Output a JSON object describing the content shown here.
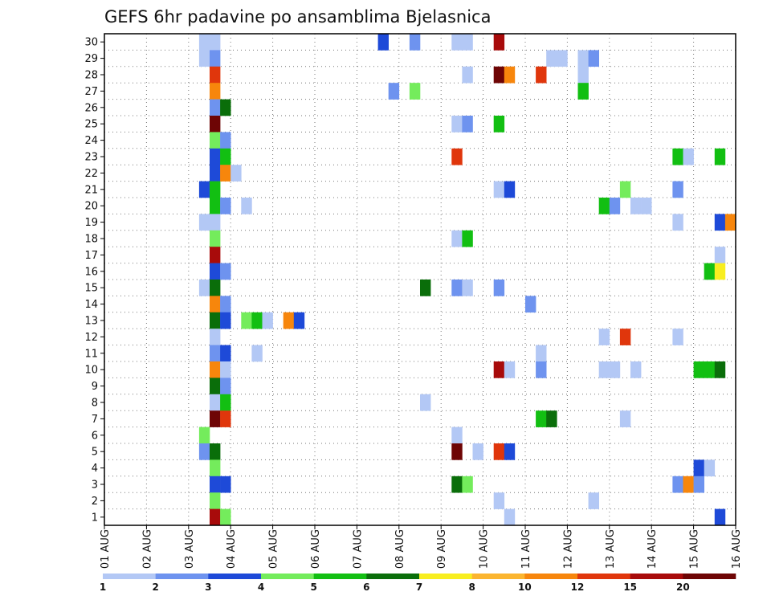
{
  "chart_data": {
    "type": "heatmap",
    "title": "GEFS 6hr padavine po ansamblima Bjelasnica",
    "xlabel": "",
    "ylabel": "",
    "x_tick_labels": [
      "01 AUG",
      "02 AUG",
      "03 AUG",
      "04 AUG",
      "05 AUG",
      "06 AUG",
      "07 AUG",
      "08 AUG",
      "09 AUG",
      "10 AUG",
      "11 AUG",
      "12 AUG",
      "13 AUG",
      "14 AUG",
      "15 AUG",
      "16 AUG"
    ],
    "y_tick_labels": [
      "1",
      "2",
      "3",
      "4",
      "5",
      "6",
      "7",
      "8",
      "9",
      "10",
      "11",
      "12",
      "13",
      "14",
      "15",
      "16",
      "17",
      "18",
      "19",
      "20",
      "21",
      "22",
      "23",
      "24",
      "25",
      "26",
      "27",
      "28",
      "29",
      "30"
    ],
    "xlim_steps": [
      0,
      60
    ],
    "ylim": [
      0,
      30
    ],
    "step_hours": 6,
    "grid": true,
    "colorbar": {
      "labels": [
        "1",
        "2",
        "3",
        "4",
        "5",
        "6",
        "7",
        "8",
        "10",
        "12",
        "15",
        "20"
      ],
      "colors": [
        "#b3c8f5",
        "#6e93ef",
        "#1e4ad8",
        "#74ec5c",
        "#12bf12",
        "#0a6e0a",
        "#f8ee20",
        "#fbb530",
        "#f7860c",
        "#e0360c",
        "#a80b0b",
        "#6e0505"
      ]
    },
    "cells": [
      {
        "t": 10,
        "m": 30,
        "v": 1
      },
      {
        "t": 11,
        "m": 30,
        "v": 1
      },
      {
        "t": 27,
        "m": 30,
        "v": 3
      },
      {
        "t": 30,
        "m": 30,
        "v": 2
      },
      {
        "t": 34,
        "m": 30,
        "v": 1
      },
      {
        "t": 35,
        "m": 30,
        "v": 1
      },
      {
        "t": 38,
        "m": 30,
        "v": 15
      },
      {
        "t": 10,
        "m": 29,
        "v": 1
      },
      {
        "t": 11,
        "m": 29,
        "v": 2
      },
      {
        "t": 43,
        "m": 29,
        "v": 1
      },
      {
        "t": 44,
        "m": 29,
        "v": 1
      },
      {
        "t": 46,
        "m": 29,
        "v": 1
      },
      {
        "t": 47,
        "m": 29,
        "v": 2
      },
      {
        "t": 11,
        "m": 28,
        "v": 12
      },
      {
        "t": 35,
        "m": 28,
        "v": 1
      },
      {
        "t": 38,
        "m": 28,
        "v": 20
      },
      {
        "t": 39,
        "m": 28,
        "v": 10
      },
      {
        "t": 42,
        "m": 28,
        "v": 12
      },
      {
        "t": 46,
        "m": 28,
        "v": 1
      },
      {
        "t": 11,
        "m": 27,
        "v": 10
      },
      {
        "t": 28,
        "m": 27,
        "v": 2
      },
      {
        "t": 30,
        "m": 27,
        "v": 4
      },
      {
        "t": 46,
        "m": 27,
        "v": 5
      },
      {
        "t": 11,
        "m": 26,
        "v": 2
      },
      {
        "t": 12,
        "m": 26,
        "v": 6
      },
      {
        "t": 11,
        "m": 25,
        "v": 20
      },
      {
        "t": 34,
        "m": 25,
        "v": 1
      },
      {
        "t": 35,
        "m": 25,
        "v": 2
      },
      {
        "t": 38,
        "m": 25,
        "v": 5
      },
      {
        "t": 11,
        "m": 24,
        "v": 4
      },
      {
        "t": 12,
        "m": 24,
        "v": 2
      },
      {
        "t": 11,
        "m": 23,
        "v": 3
      },
      {
        "t": 12,
        "m": 23,
        "v": 5
      },
      {
        "t": 34,
        "m": 23,
        "v": 12
      },
      {
        "t": 55,
        "m": 23,
        "v": 5
      },
      {
        "t": 56,
        "m": 23,
        "v": 1
      },
      {
        "t": 59,
        "m": 23,
        "v": 5
      },
      {
        "t": 11,
        "m": 22,
        "v": 3
      },
      {
        "t": 12,
        "m": 22,
        "v": 10
      },
      {
        "t": 13,
        "m": 22,
        "v": 1
      },
      {
        "t": 10,
        "m": 21,
        "v": 3
      },
      {
        "t": 11,
        "m": 21,
        "v": 5
      },
      {
        "t": 38,
        "m": 21,
        "v": 1
      },
      {
        "t": 39,
        "m": 21,
        "v": 3
      },
      {
        "t": 50,
        "m": 21,
        "v": 4
      },
      {
        "t": 55,
        "m": 21,
        "v": 2
      },
      {
        "t": 11,
        "m": 20,
        "v": 5
      },
      {
        "t": 12,
        "m": 20,
        "v": 2
      },
      {
        "t": 14,
        "m": 20,
        "v": 1
      },
      {
        "t": 48,
        "m": 20,
        "v": 5
      },
      {
        "t": 49,
        "m": 20,
        "v": 2
      },
      {
        "t": 51,
        "m": 20,
        "v": 1
      },
      {
        "t": 52,
        "m": 20,
        "v": 1
      },
      {
        "t": 10,
        "m": 19,
        "v": 1
      },
      {
        "t": 11,
        "m": 19,
        "v": 1
      },
      {
        "t": 55,
        "m": 19,
        "v": 1
      },
      {
        "t": 59,
        "m": 19,
        "v": 3
      },
      {
        "t": 60,
        "m": 19,
        "v": 10
      },
      {
        "t": 11,
        "m": 18,
        "v": 4
      },
      {
        "t": 34,
        "m": 18,
        "v": 1
      },
      {
        "t": 35,
        "m": 18,
        "v": 5
      },
      {
        "t": 11,
        "m": 17,
        "v": 15
      },
      {
        "t": 59,
        "m": 17,
        "v": 1
      },
      {
        "t": 11,
        "m": 16,
        "v": 3
      },
      {
        "t": 12,
        "m": 16,
        "v": 2
      },
      {
        "t": 58,
        "m": 16,
        "v": 5
      },
      {
        "t": 59,
        "m": 16,
        "v": 7
      },
      {
        "t": 10,
        "m": 15,
        "v": 1
      },
      {
        "t": 11,
        "m": 15,
        "v": 6
      },
      {
        "t": 31,
        "m": 15,
        "v": 6
      },
      {
        "t": 34,
        "m": 15,
        "v": 2
      },
      {
        "t": 35,
        "m": 15,
        "v": 1
      },
      {
        "t": 38,
        "m": 15,
        "v": 2
      },
      {
        "t": 11,
        "m": 14,
        "v": 10
      },
      {
        "t": 12,
        "m": 14,
        "v": 2
      },
      {
        "t": 41,
        "m": 14,
        "v": 2
      },
      {
        "t": 11,
        "m": 13,
        "v": 6
      },
      {
        "t": 12,
        "m": 13,
        "v": 3
      },
      {
        "t": 14,
        "m": 13,
        "v": 4
      },
      {
        "t": 15,
        "m": 13,
        "v": 5
      },
      {
        "t": 16,
        "m": 13,
        "v": 1
      },
      {
        "t": 18,
        "m": 13,
        "v": 10
      },
      {
        "t": 19,
        "m": 13,
        "v": 3
      },
      {
        "t": 11,
        "m": 12,
        "v": 1
      },
      {
        "t": 48,
        "m": 12,
        "v": 1
      },
      {
        "t": 50,
        "m": 12,
        "v": 12
      },
      {
        "t": 55,
        "m": 12,
        "v": 1
      },
      {
        "t": 11,
        "m": 11,
        "v": 2
      },
      {
        "t": 12,
        "m": 11,
        "v": 3
      },
      {
        "t": 15,
        "m": 11,
        "v": 1
      },
      {
        "t": 42,
        "m": 11,
        "v": 1
      },
      {
        "t": 11,
        "m": 10,
        "v": 10
      },
      {
        "t": 12,
        "m": 10,
        "v": 1
      },
      {
        "t": 38,
        "m": 10,
        "v": 15
      },
      {
        "t": 39,
        "m": 10,
        "v": 1
      },
      {
        "t": 42,
        "m": 10,
        "v": 2
      },
      {
        "t": 48,
        "m": 10,
        "v": 1
      },
      {
        "t": 49,
        "m": 10,
        "v": 1
      },
      {
        "t": 51,
        "m": 10,
        "v": 1
      },
      {
        "t": 57,
        "m": 10,
        "v": 5
      },
      {
        "t": 58,
        "m": 10,
        "v": 5
      },
      {
        "t": 59,
        "m": 10,
        "v": 6
      },
      {
        "t": 11,
        "m": 9,
        "v": 6
      },
      {
        "t": 12,
        "m": 9,
        "v": 2
      },
      {
        "t": 11,
        "m": 8,
        "v": 1
      },
      {
        "t": 12,
        "m": 8,
        "v": 5
      },
      {
        "t": 31,
        "m": 8,
        "v": 1
      },
      {
        "t": 11,
        "m": 7,
        "v": 20
      },
      {
        "t": 12,
        "m": 7,
        "v": 12
      },
      {
        "t": 42,
        "m": 7,
        "v": 5
      },
      {
        "t": 43,
        "m": 7,
        "v": 6
      },
      {
        "t": 50,
        "m": 7,
        "v": 1
      },
      {
        "t": 10,
        "m": 6,
        "v": 4
      },
      {
        "t": 34,
        "m": 6,
        "v": 1
      },
      {
        "t": 10,
        "m": 5,
        "v": 2
      },
      {
        "t": 11,
        "m": 5,
        "v": 6
      },
      {
        "t": 34,
        "m": 5,
        "v": 20
      },
      {
        "t": 36,
        "m": 5,
        "v": 1
      },
      {
        "t": 38,
        "m": 5,
        "v": 12
      },
      {
        "t": 39,
        "m": 5,
        "v": 3
      },
      {
        "t": 11,
        "m": 4,
        "v": 4
      },
      {
        "t": 57,
        "m": 4,
        "v": 3
      },
      {
        "t": 58,
        "m": 4,
        "v": 1
      },
      {
        "t": 11,
        "m": 3,
        "v": 3
      },
      {
        "t": 12,
        "m": 3,
        "v": 3
      },
      {
        "t": 34,
        "m": 3,
        "v": 6
      },
      {
        "t": 35,
        "m": 3,
        "v": 4
      },
      {
        "t": 55,
        "m": 3,
        "v": 2
      },
      {
        "t": 56,
        "m": 3,
        "v": 10
      },
      {
        "t": 57,
        "m": 3,
        "v": 2
      },
      {
        "t": 11,
        "m": 2,
        "v": 4
      },
      {
        "t": 38,
        "m": 2,
        "v": 1
      },
      {
        "t": 47,
        "m": 2,
        "v": 1
      },
      {
        "t": 11,
        "m": 1,
        "v": 15
      },
      {
        "t": 12,
        "m": 1,
        "v": 4
      },
      {
        "t": 39,
        "m": 1,
        "v": 1
      },
      {
        "t": 59,
        "m": 1,
        "v": 3
      }
    ]
  }
}
